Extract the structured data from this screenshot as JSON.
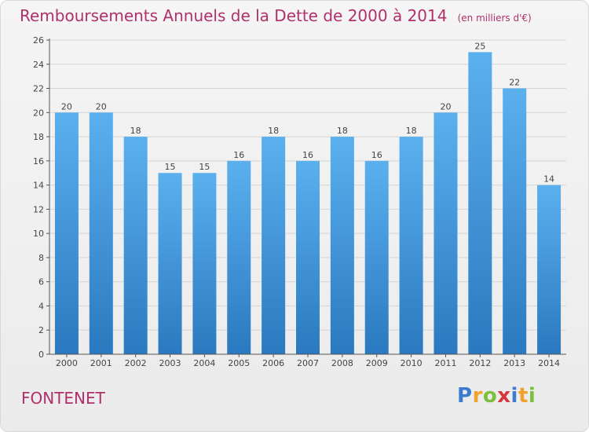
{
  "title": "Remboursements Annuels de la Dette de 2000 à 2014",
  "subtitle": "(en milliers d'€)",
  "commune": "FONTENET",
  "logo": {
    "letters": [
      "P",
      "r",
      "o",
      "x",
      "i",
      "t",
      "i"
    ],
    "colors": [
      "#3b7bd0",
      "#f2a12d",
      "#7cbf3a",
      "#d9363e",
      "#3b7bd0",
      "#f2a12d",
      "#7cbf3a"
    ]
  },
  "colors": {
    "bar_top": "#5bb0ee",
    "bar_bottom": "#2a79c0",
    "title": "#b0306a"
  },
  "chart_data": {
    "type": "bar",
    "title": "Remboursements Annuels de la Dette de 2000 à 2014",
    "categories": [
      "2000",
      "2001",
      "2002",
      "2003",
      "2004",
      "2005",
      "2006",
      "2007",
      "2008",
      "2009",
      "2010",
      "2011",
      "2012",
      "2013",
      "2014"
    ],
    "values": [
      20,
      20,
      18,
      15,
      15,
      16,
      18,
      16,
      18,
      16,
      18,
      20,
      25,
      22,
      14
    ],
    "labels": [
      "20",
      "20",
      "18",
      "15",
      "15",
      "16",
      "18",
      "16",
      "18",
      "16",
      "18",
      "20",
      "25",
      "22",
      "14"
    ],
    "yticks": [
      "0",
      "2",
      "4",
      "6",
      "8",
      "10",
      "12",
      "14",
      "16",
      "18",
      "20",
      "22",
      "24",
      "26"
    ],
    "ylim": [
      0,
      26
    ],
    "ystep": 2,
    "xlabel": "",
    "ylabel": "",
    "grid": true
  }
}
